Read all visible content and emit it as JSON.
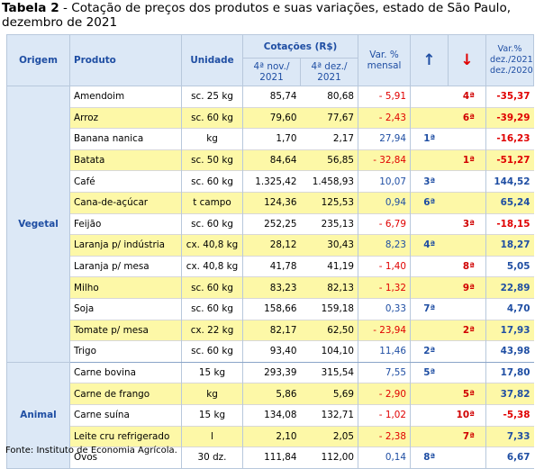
{
  "title": {
    "bold": "Tabela 2",
    "rest": " - Cotação de preços dos produtos e suas variações, estado de São Paulo, dezembro de 2021"
  },
  "headers": {
    "origem": "Origem",
    "produto": "Produto",
    "unidade": "Unidade",
    "cotacoes": "Cotações (R$)",
    "col_nov": "4ª nov./ 2021",
    "col_dez": "4ª dez./ 2021",
    "var": "Var. % mensal",
    "up_arrow": "↑",
    "down_arrow": "↓",
    "var_anual": "Var.% dez./2021- dez./2020"
  },
  "groups": [
    {
      "name": "Vegetal",
      "rows": [
        {
          "produto": "Amendoim",
          "unidade": "sc. 25 kg",
          "nov": "85,74",
          "dez": "80,68",
          "var": "- 5,91",
          "up": "",
          "down": "4ª",
          "pct": "-35,37"
        },
        {
          "produto": "Arroz",
          "unidade": "sc. 60 kg",
          "nov": "79,60",
          "dez": "77,67",
          "var": "- 2,43",
          "up": "",
          "down": "6ª",
          "pct": "-39,29"
        },
        {
          "produto": "Banana nanica",
          "unidade": "kg",
          "nov": "1,70",
          "dez": "2,17",
          "var": "27,94",
          "up": "1ª",
          "down": "",
          "pct": "-16,23"
        },
        {
          "produto": "Batata",
          "unidade": "sc. 50 kg",
          "nov": "84,64",
          "dez": "56,85",
          "var": "- 32,84",
          "up": "",
          "down": "1ª",
          "pct": "-51,27"
        },
        {
          "produto": "Café",
          "unidade": "sc. 60 kg",
          "nov": "1.325,42",
          "dez": "1.458,93",
          "var": "10,07",
          "up": "3ª",
          "down": "",
          "pct": "144,52"
        },
        {
          "produto": "Cana-de-açúcar",
          "unidade": "t campo",
          "nov": "124,36",
          "dez": "125,53",
          "var": "0,94",
          "up": "6ª",
          "down": "",
          "pct": "65,24"
        },
        {
          "produto": "Feijão",
          "unidade": "sc. 60 kg",
          "nov": "252,25",
          "dez": "235,13",
          "var": "- 6,79",
          "up": "",
          "down": "3ª",
          "pct": "-18,15"
        },
        {
          "produto": "Laranja p/ indústria",
          "unidade": "cx. 40,8 kg",
          "nov": "28,12",
          "dez": "30,43",
          "var": "8,23",
          "up": "4ª",
          "down": "",
          "pct": "18,27"
        },
        {
          "produto": "Laranja p/ mesa",
          "unidade": "cx. 40,8 kg",
          "nov": "41,78",
          "dez": "41,19",
          "var": "- 1,40",
          "up": "",
          "down": "8ª",
          "pct": "5,05"
        },
        {
          "produto": "Milho",
          "unidade": "sc. 60 kg",
          "nov": "83,23",
          "dez": "82,13",
          "var": "- 1,32",
          "up": "",
          "down": "9ª",
          "pct": "22,89"
        },
        {
          "produto": "Soja",
          "unidade": "sc. 60 kg",
          "nov": "158,66",
          "dez": "159,18",
          "var": "0,33",
          "up": "7ª",
          "down": "",
          "pct": "4,70"
        },
        {
          "produto": "Tomate p/ mesa",
          "unidade": "cx. 22 kg",
          "nov": "82,17",
          "dez": "62,50",
          "var": "- 23,94",
          "up": "",
          "down": "2ª",
          "pct": "17,93"
        },
        {
          "produto": "Trigo",
          "unidade": "sc. 60 kg",
          "nov": "93,40",
          "dez": "104,10",
          "var": "11,46",
          "up": "2ª",
          "down": "",
          "pct": "43,98"
        }
      ]
    },
    {
      "name": "Animal",
      "rows": [
        {
          "produto": "Carne bovina",
          "unidade": "15 kg",
          "nov": "293,39",
          "dez": "315,54",
          "var": "7,55",
          "up": "5ª",
          "down": "",
          "pct": "17,80"
        },
        {
          "produto": "Carne de frango",
          "unidade": "kg",
          "nov": "5,86",
          "dez": "5,69",
          "var": "- 2,90",
          "up": "",
          "down": "5ª",
          "pct": "37,82"
        },
        {
          "produto": "Carne suína",
          "unidade": "15 kg",
          "nov": "134,08",
          "dez": "132,71",
          "var": "- 1,02",
          "up": "",
          "down": "10ª",
          "pct": "-5,38"
        },
        {
          "produto": "Leite cru refrigerado",
          "unidade": "l",
          "nov": "2,10",
          "dez": "2,05",
          "var": "- 2,38",
          "up": "",
          "down": "7ª",
          "pct": "7,33"
        },
        {
          "produto": "Ovos",
          "unidade": "30 dz.",
          "nov": "111,84",
          "dez": "112,00",
          "var": "0,14",
          "up": "8ª",
          "down": "",
          "pct": "6,67"
        }
      ]
    }
  ],
  "source": "Fonte: Instituto de Economia Agrícola."
}
